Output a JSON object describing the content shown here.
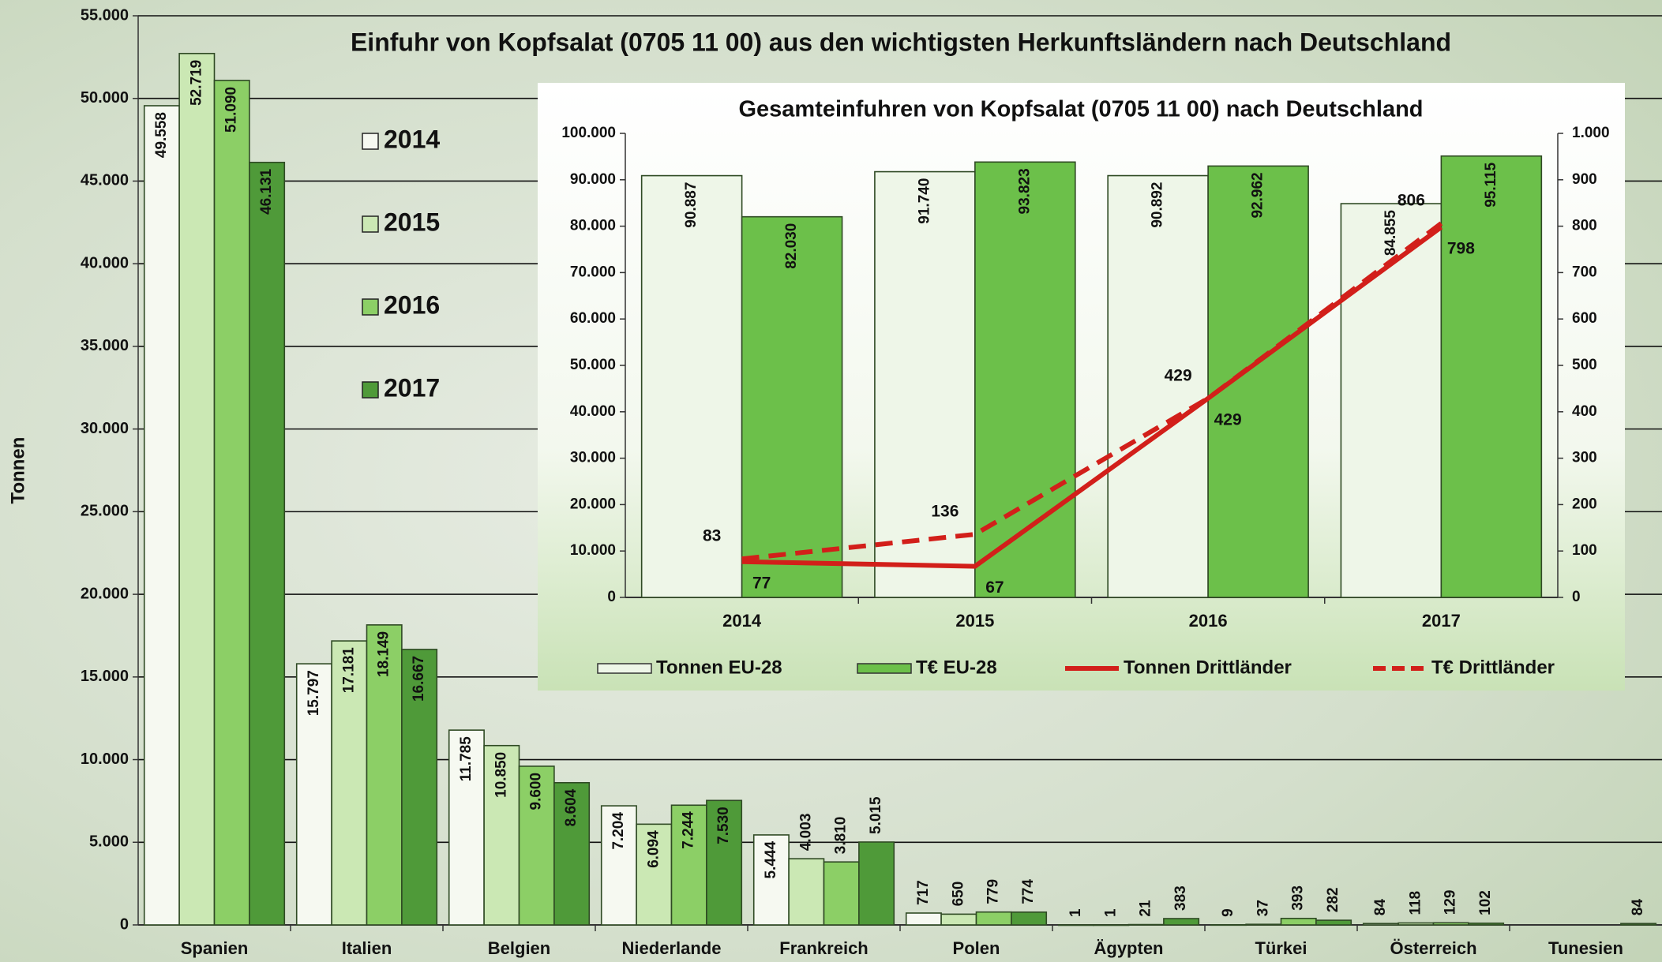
{
  "chart_data": [
    {
      "type": "bar",
      "title": "Einfuhr von Kopfsalat (0705 11 00) aus den wichtigsten Herkunftsländern nach Deutschland",
      "y_label": "Tonnen",
      "categories": [
        "Spanien",
        "Italien",
        "Belgien",
        "Niederlande",
        "Frankreich",
        "Polen",
        "Ägypten",
        "Türkei",
        "Österreich",
        "Tunesien"
      ],
      "series": [
        {
          "name": "2014",
          "color": "#f6f9f1",
          "values": [
            49558,
            15797,
            11785,
            7204,
            5444,
            717,
            1,
            9,
            84,
            null
          ],
          "value_labels": [
            "49.558",
            "15.797",
            "11.785",
            "7.204",
            "5.444",
            "717",
            "1",
            "9",
            "84",
            null
          ]
        },
        {
          "name": "2015",
          "color": "#cbe8b4",
          "values": [
            52719,
            17181,
            10850,
            6094,
            4003,
            650,
            1,
            37,
            118,
            null
          ],
          "value_labels": [
            "52.719",
            "17.181",
            "10.850",
            "6.094",
            "4.003",
            "650",
            "1",
            "37",
            "118",
            null
          ]
        },
        {
          "name": "2016",
          "color": "#8ccf66",
          "values": [
            51090,
            18149,
            9600,
            7244,
            3810,
            779,
            21,
            393,
            129,
            null
          ],
          "value_labels": [
            "51.090",
            "18.149",
            "9.600",
            "7.244",
            "3.810",
            "779",
            "21",
            "393",
            "129",
            null
          ]
        },
        {
          "name": "2017",
          "color": "#4f9a39",
          "values": [
            46131,
            16667,
            8604,
            7530,
            5015,
            774,
            383,
            282,
            102,
            84
          ],
          "value_labels": [
            "46.131",
            "16.667",
            "8.604",
            "7.530",
            "5.015",
            "774",
            "383",
            "282",
            "102",
            "84"
          ]
        }
      ],
      "ylim": [
        0,
        55000
      ],
      "yticks": [
        0,
        {
          "value": 5000,
          "label": "5.000"
        },
        {
          "value": 10000,
          "label": "10.000"
        },
        {
          "value": 15000,
          "label": "15.000"
        },
        {
          "value": 20000,
          "label": "20.000"
        },
        {
          "value": 25000,
          "label": "25.000"
        },
        {
          "value": 30000,
          "label": "30.000"
        },
        {
          "value": 35000,
          "label": "35.000"
        },
        {
          "value": 40000,
          "label": "40.000"
        },
        {
          "value": 45000,
          "label": "45.000"
        },
        {
          "value": 50000,
          "label": "50.000"
        },
        {
          "value": 55000,
          "label": "55.000"
        }
      ],
      "grid": true,
      "legend": "upper-left"
    },
    {
      "type": "bar",
      "title": "Gesamteinfuhren von Kopfsalat (0705 11 00) nach Deutschland",
      "categories": [
        "2014",
        "2015",
        "2016",
        "2017"
      ],
      "series": [
        {
          "name": "Tonnen EU-28",
          "color": "#eef6e8",
          "values": [
            90887,
            91740,
            90892,
            84855
          ],
          "value_labels": [
            "90.887",
            "91.740",
            "90.892",
            "84.855"
          ]
        },
        {
          "name": "T€ EU-28",
          "color": "#6cc04a",
          "values": [
            82030,
            93823,
            92962,
            95115
          ],
          "value_labels": [
            "82.030",
            "93.823",
            "92.962",
            "95.115"
          ]
        },
        {
          "name": "Tonnen Drittländer",
          "color": "#d21f1a",
          "axis": "y2",
          "line_style": "solid",
          "values": [
            77,
            67,
            429,
            798
          ]
        },
        {
          "name": "T€ Drittländer",
          "color": "#d21f1a",
          "axis": "y2",
          "line_style": "dashed",
          "values": [
            83,
            136,
            429,
            806
          ]
        }
      ],
      "ylim": [
        0,
        100000
      ],
      "yticks": [
        0,
        {
          "value": 10000,
          "label": "10.000"
        },
        {
          "value": 20000,
          "label": "20.000"
        },
        {
          "value": 30000,
          "label": "30.000"
        },
        {
          "value": 40000,
          "label": "40.000"
        },
        {
          "value": 50000,
          "label": "50.000"
        },
        {
          "value": 60000,
          "label": "60.000"
        },
        {
          "value": 70000,
          "label": "70.000"
        },
        {
          "value": 80000,
          "label": "80.000"
        },
        {
          "value": 90000,
          "label": "90.000"
        },
        {
          "value": 100000,
          "label": "100.000"
        }
      ],
      "y2lim": [
        0,
        1000
      ],
      "y2ticks": [
        0,
        100,
        200,
        300,
        400,
        500,
        600,
        700,
        800,
        900,
        {
          "value": 1000,
          "label": "1.000"
        }
      ],
      "grid": false,
      "legend": "bottom"
    }
  ]
}
